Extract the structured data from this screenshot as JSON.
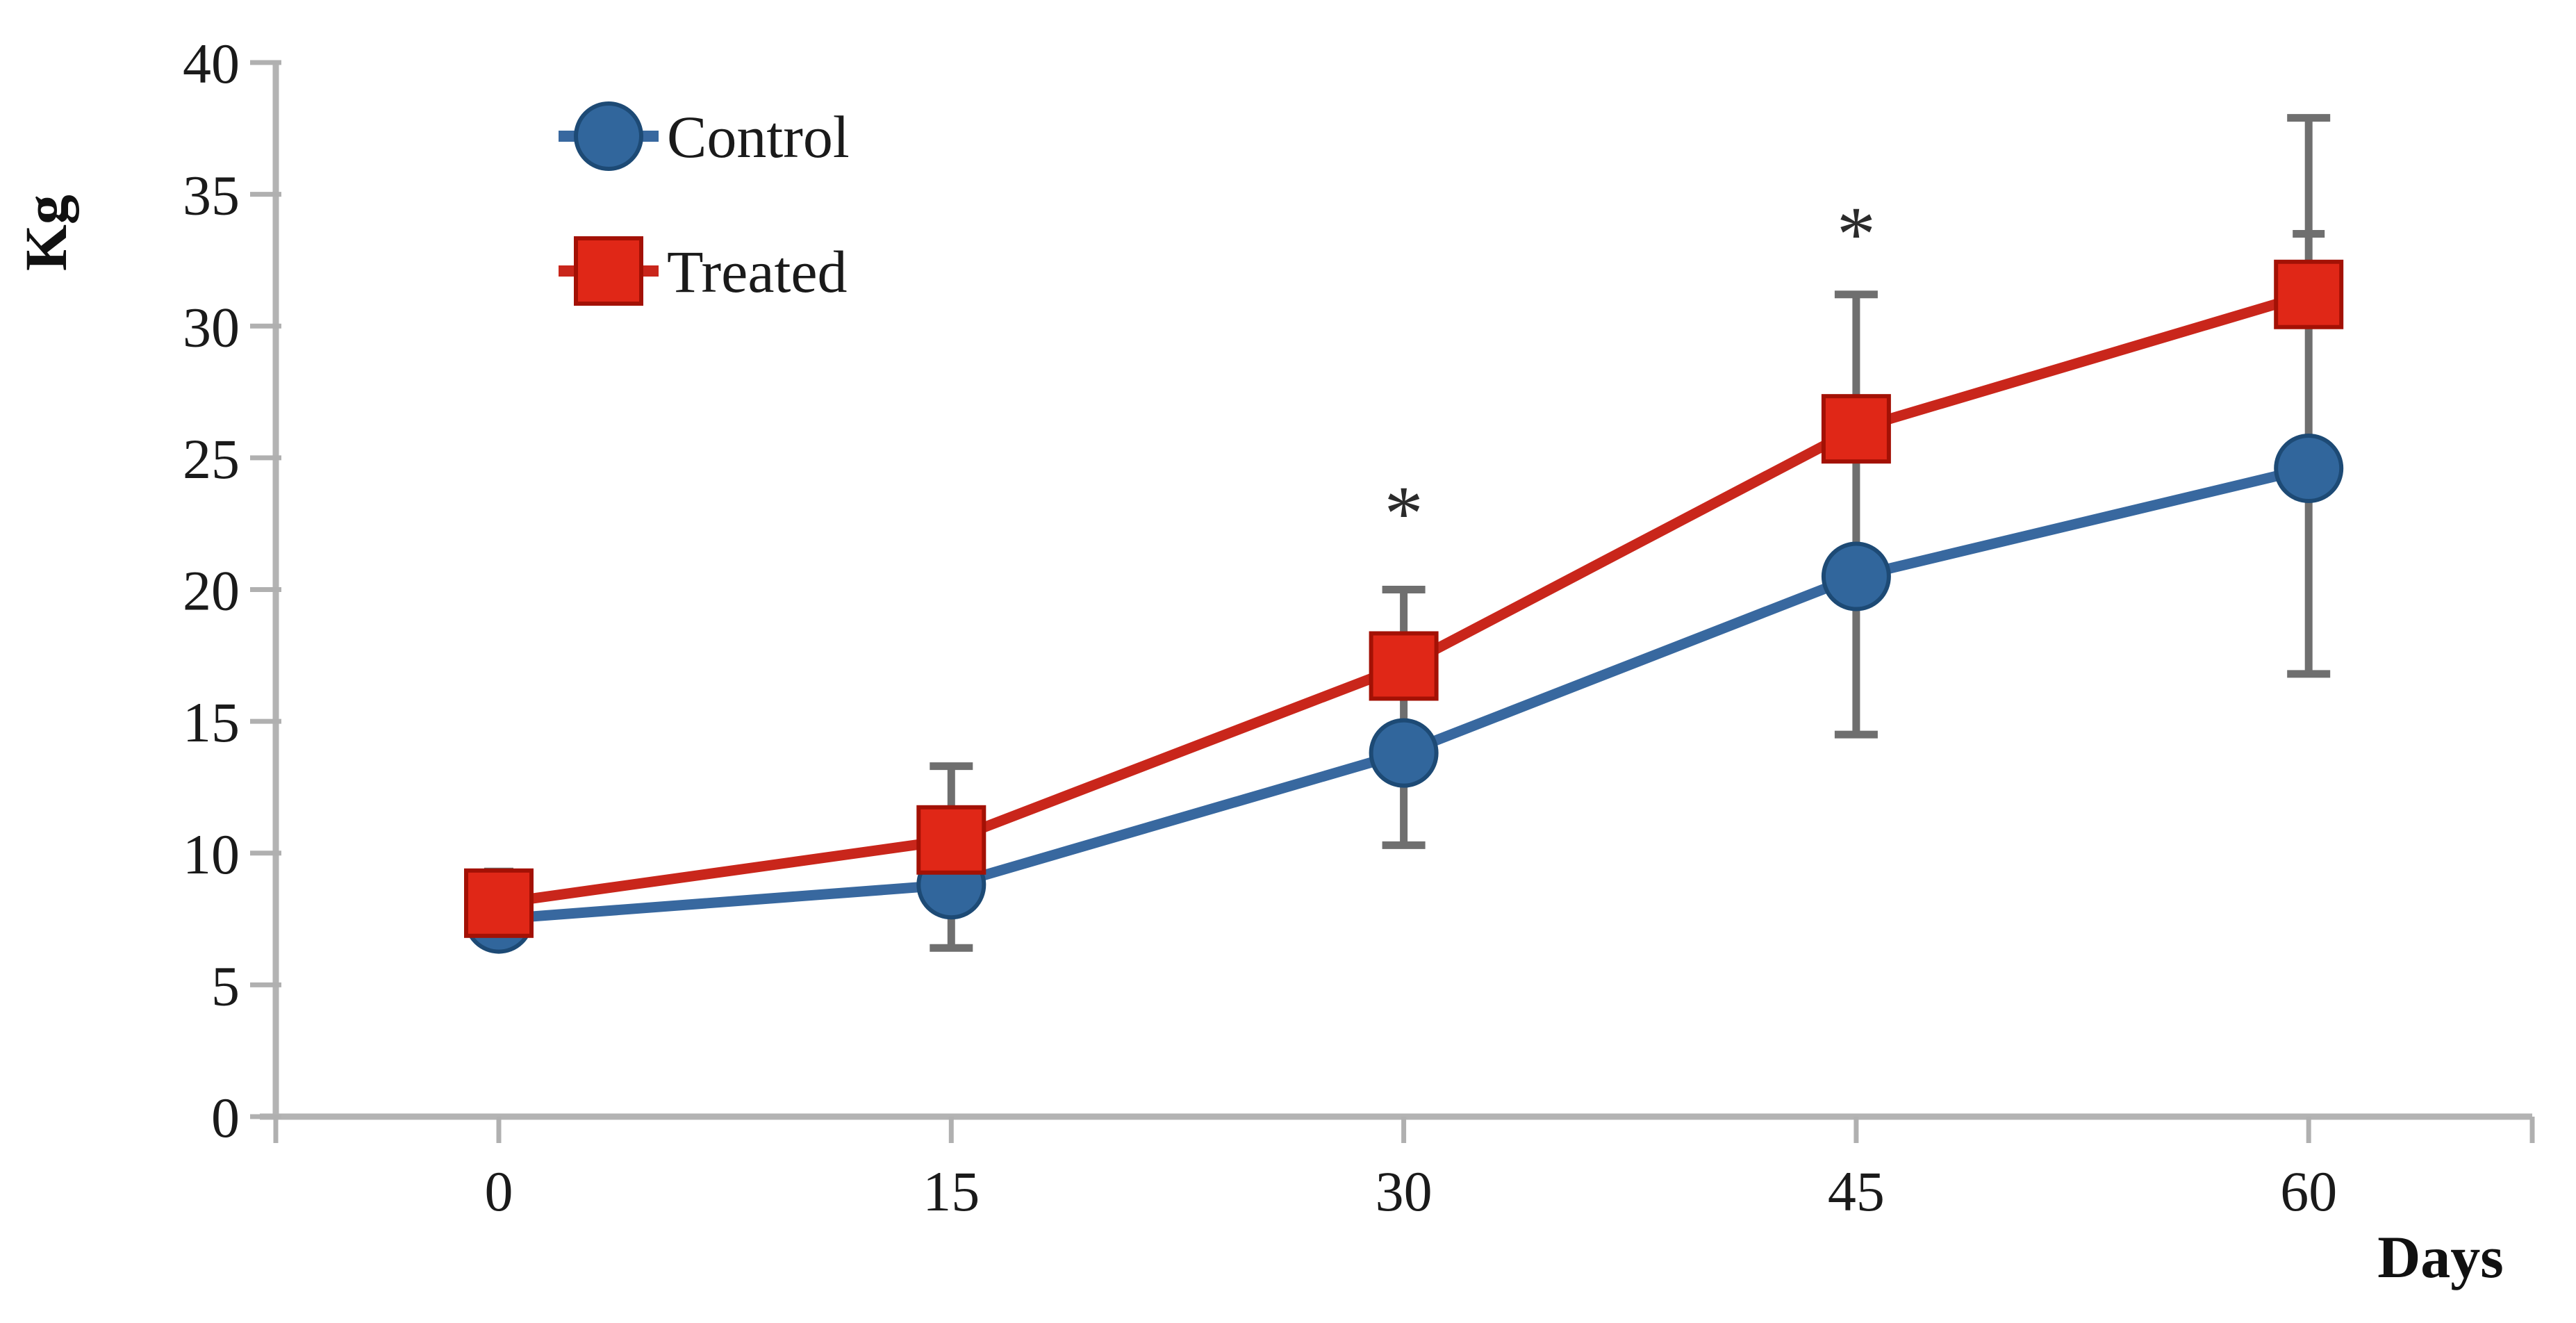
{
  "chart_data": {
    "type": "line",
    "title": "",
    "xlabel": "Days",
    "ylabel": "Kg",
    "x": [
      0,
      15,
      30,
      45,
      60
    ],
    "xlim": [
      -8,
      68
    ],
    "ylim": [
      0,
      40
    ],
    "yticks": [
      0,
      5,
      10,
      15,
      20,
      25,
      30,
      35,
      40
    ],
    "xticks": [
      0,
      15,
      30,
      45,
      60
    ],
    "grid": false,
    "legend_position": "top-left-inside",
    "series": [
      {
        "name": "Control",
        "marker": "circle",
        "line_color": "#38689f",
        "marker_fill": "#31669c",
        "marker_edge": "#1d4a75",
        "values": [
          7.5,
          8.8,
          13.8,
          20.5,
          24.6
        ]
      },
      {
        "name": "Treated",
        "marker": "square",
        "line_color": "#c9261b",
        "marker_fill": "#e02717",
        "marker_edge": "#a31105",
        "values": [
          8.1,
          10.5,
          17.1,
          26.1,
          31.2
        ]
      }
    ],
    "error_bars": [
      {
        "day": 0,
        "top": 9.3,
        "bottom": 7.0,
        "cap_top": true,
        "cap_bottom": false,
        "cap_w": 42
      },
      {
        "day": 15,
        "top": 13.3,
        "bottom": 6.4,
        "cap_top": true,
        "cap_bottom": true,
        "cap_w": 62,
        "mid_cap": 11.5,
        "mid_cap_w": 46
      },
      {
        "day": 30,
        "top": 20.0,
        "bottom": 10.3,
        "cap_top": true,
        "cap_bottom": true,
        "cap_w": 62
      },
      {
        "day": 45,
        "top": 31.2,
        "bottom": 14.5,
        "cap_top": true,
        "cap_bottom": true,
        "cap_w": 62
      },
      {
        "day": 60,
        "top": 37.9,
        "bottom": 16.8,
        "cap_top": true,
        "cap_bottom": true,
        "cap_w": 62,
        "mid_cap": 33.5,
        "mid_cap_w": 46
      }
    ],
    "annotations": [
      {
        "text": "*",
        "day": 30,
        "y": 22.9
      },
      {
        "text": "*",
        "day": 45,
        "y": 33.5
      }
    ],
    "colors": {
      "error_bar": "#6f6f6f",
      "axis": "#b3b3b3",
      "text": "#1a1a1a"
    }
  }
}
